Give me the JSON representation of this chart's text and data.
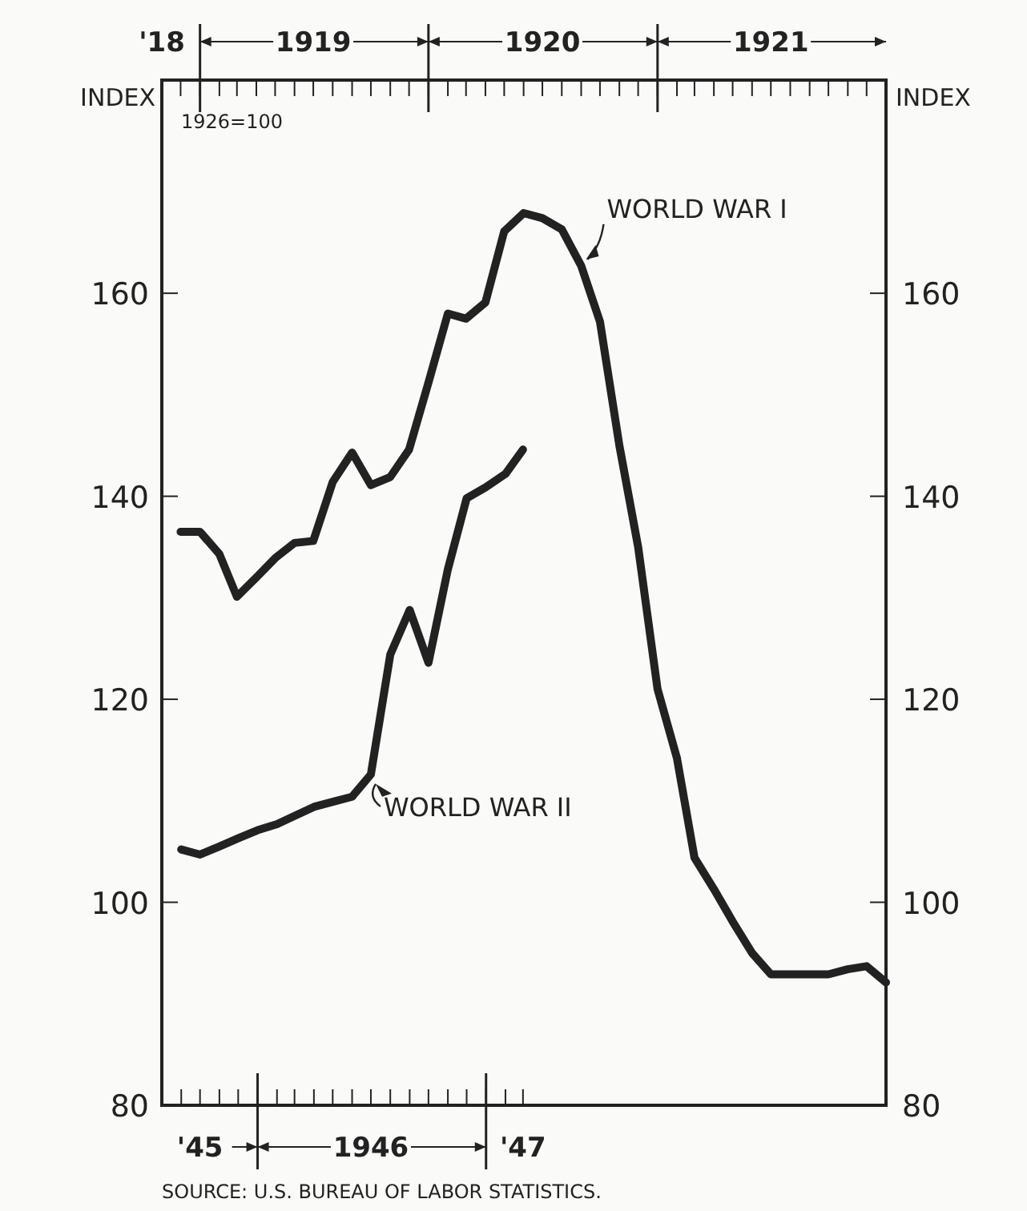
{
  "chart_data": {
    "type": "line",
    "ylabel": "INDEX",
    "y2label": "INDEX",
    "annotations": [
      "1926=100",
      "SOURCE: U.S. BUREAU OF LABOR STATISTICS."
    ],
    "xlim": [
      "1945-08",
      "1948-10"
    ],
    "xticks": [
      {
        "value": "1945-09",
        "label": null
      },
      {
        "value": "1945-10",
        "label": "'45"
      },
      {
        "value": "1945-11",
        "label": null
      },
      {
        "value": "1945-12",
        "label": null
      },
      {
        "value": "1946-01",
        "label": null
      },
      {
        "value": "1946-02",
        "label": null
      },
      {
        "value": "1946-03",
        "label": null
      },
      {
        "value": "1946-04",
        "label": null
      },
      {
        "value": "1946-05",
        "label": null
      },
      {
        "value": "1946-06",
        "label": null
      },
      {
        "value": "1946-07",
        "label": "1946"
      },
      {
        "value": "1946-08",
        "label": null
      },
      {
        "value": "1946-09",
        "label": null
      },
      {
        "value": "1946-10",
        "label": null
      },
      {
        "value": "1946-11",
        "label": null
      },
      {
        "value": "1946-12",
        "label": null
      },
      {
        "value": "1947-01",
        "label": null
      },
      {
        "value": "1947-02",
        "label": null
      },
      {
        "value": "1947-03",
        "label": "'47"
      }
    ],
    "x2lim": [
      "1918-11",
      "1922-01"
    ],
    "x2ticks": [
      {
        "value": "1918-11",
        "label": "'18"
      },
      {
        "value": "1918-12",
        "label": null
      },
      {
        "value": "1919-01",
        "label": null
      },
      {
        "value": "1919-02",
        "label": null
      },
      {
        "value": "1919-03",
        "label": null
      },
      {
        "value": "1919-04",
        "label": null
      },
      {
        "value": "1919-05",
        "label": null
      },
      {
        "value": "1919-06",
        "label": null
      },
      {
        "value": "1919-07",
        "label": "1919"
      },
      {
        "value": "1919-08",
        "label": null
      },
      {
        "value": "1919-09",
        "label": null
      },
      {
        "value": "1919-10",
        "label": null
      },
      {
        "value": "1919-11",
        "label": null
      },
      {
        "value": "1919-12",
        "label": null
      },
      {
        "value": "1920-01",
        "label": null
      },
      {
        "value": "1920-02",
        "label": null
      },
      {
        "value": "1920-03",
        "label": null
      },
      {
        "value": "1920-04",
        "label": null
      },
      {
        "value": "1920-05",
        "label": null
      },
      {
        "value": "1920-06",
        "label": null
      },
      {
        "value": "1920-07",
        "label": "1920"
      },
      {
        "value": "1920-08",
        "label": null
      },
      {
        "value": "1920-09",
        "label": null
      },
      {
        "value": "1920-10",
        "label": null
      },
      {
        "value": "1920-11",
        "label": null
      },
      {
        "value": "1920-12",
        "label": null
      },
      {
        "value": "1921-01",
        "label": null
      },
      {
        "value": "1921-02",
        "label": null
      },
      {
        "value": "1921-03",
        "label": null
      },
      {
        "value": "1921-04",
        "label": null
      },
      {
        "value": "1921-05",
        "label": null
      },
      {
        "value": "1921-06",
        "label": null
      },
      {
        "value": "1921-07",
        "label": "1921"
      },
      {
        "value": "1921-08",
        "label": null
      },
      {
        "value": "1921-09",
        "label": null
      },
      {
        "value": "1921-10",
        "label": null
      },
      {
        "value": "1921-11",
        "label": null
      },
      {
        "value": "1921-12",
        "label": null
      }
    ],
    "ylim": [
      80,
      181
    ],
    "yticks": [
      80,
      100,
      120,
      140,
      160
    ],
    "y2lim": [
      80,
      181
    ],
    "y2ticks": [
      80,
      100,
      120,
      140,
      160
    ],
    "grid": false,
    "marker": "none",
    "line_style": "solid",
    "series": [
      {
        "name": "WORLD WAR I",
        "color": "#222222",
        "axis": "x2",
        "x": [
          "1918-12",
          "1919-01",
          "1919-02",
          "1919-03",
          "1919-04",
          "1919-05",
          "1919-06",
          "1919-07",
          "1919-08",
          "1919-09",
          "1919-10",
          "1919-11",
          "1919-12",
          "1920-01",
          "1920-02",
          "1920-03",
          "1920-04",
          "1920-05",
          "1920-06",
          "1920-07",
          "1920-08",
          "1920-09",
          "1920-10",
          "1920-11",
          "1920-12",
          "1921-01",
          "1921-02",
          "1921-03",
          "1921-04",
          "1921-05",
          "1921-06",
          "1921-07",
          "1921-08",
          "1921-09",
          "1921-10",
          "1921-11",
          "1921-12",
          "1922-01"
        ],
        "values": [
          136.5,
          136.5,
          134.3,
          130.1,
          132,
          133.9,
          135.4,
          135.6,
          141.4,
          144.3,
          141.1,
          141.9,
          144.6,
          151.2,
          158,
          157.5,
          159.1,
          166.1,
          167.9,
          167.4,
          166.3,
          162.7,
          157.2,
          145,
          135,
          121,
          114.2,
          104.4,
          101.3,
          98.1,
          95,
          92.9,
          92.9,
          92.9,
          92.9,
          93.4,
          93.7,
          92.1
        ]
      },
      {
        "name": "WORLD WAR II",
        "color": "#222222",
        "x": [
          "1945-09",
          "1945-10",
          "1945-11",
          "1945-12",
          "1946-01",
          "1946-02",
          "1946-03",
          "1946-04",
          "1946-05",
          "1946-06",
          "1946-07",
          "1946-08",
          "1946-09",
          "1946-10",
          "1946-11",
          "1946-12",
          "1947-01",
          "1947-02",
          "1947-03"
        ],
        "values": [
          105.2,
          104.7,
          105.5,
          106.3,
          107.1,
          107.7,
          108.5,
          109.4,
          109.9,
          110.4,
          112.6,
          124.4,
          128.8,
          123.6,
          132.8,
          139.8,
          140.9,
          142.2,
          144.6
        ]
      }
    ]
  }
}
